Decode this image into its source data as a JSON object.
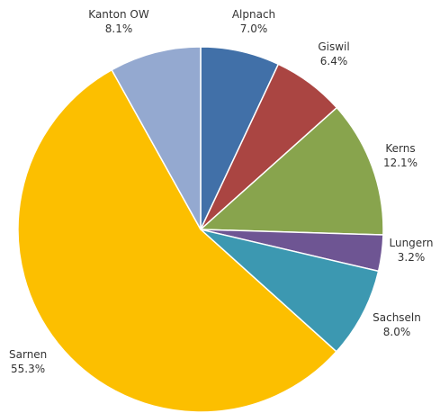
{
  "chart_data": {
    "type": "pie",
    "title": "",
    "start": "top",
    "direction": "clockwise",
    "slices": [
      {
        "label": "Alpnach",
        "percent_label": "7.0%",
        "value": 7.0,
        "color": "#4170A8"
      },
      {
        "label": "Giswil",
        "percent_label": "6.4%",
        "value": 6.4,
        "color": "#AA4542"
      },
      {
        "label": "Kerns",
        "percent_label": "12.1%",
        "value": 12.1,
        "color": "#88A44D"
      },
      {
        "label": "Lungern",
        "percent_label": "3.2%",
        "value": 3.2,
        "color": "#6E5593"
      },
      {
        "label": "Sachseln",
        "percent_label": "8.0%",
        "value": 8.0,
        "color": "#3C98B1"
      },
      {
        "label": "Sarnen",
        "percent_label": "55.3%",
        "value": 55.3,
        "color": "#FCBF00"
      },
      {
        "label": "Kanton OW",
        "percent_label": "8.1%",
        "value": 8.1,
        "color": "#94A9D0"
      }
    ]
  }
}
